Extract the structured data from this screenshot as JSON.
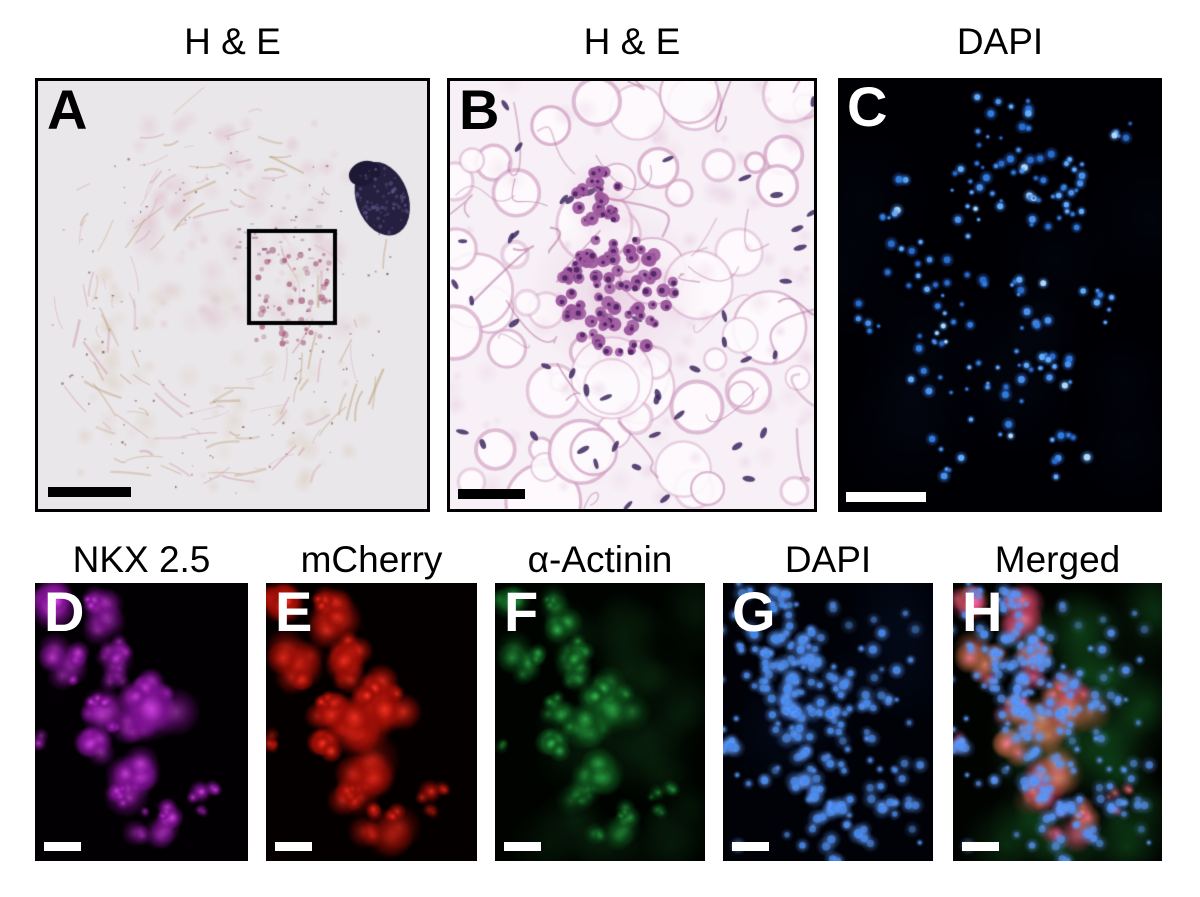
{
  "figure_name": "histology-and-immunofluorescence-panel-figure",
  "panels": [
    {
      "label": "A",
      "title": "H & E",
      "render": "he_low",
      "label_color": "#000000",
      "scalebar_color": "#000000",
      "background": "#eae7ea",
      "accents": {
        "tissue_pink": "#d6a0b2",
        "tissue_tan": "#c8aa82",
        "dense_node": "#262040",
        "inset_box": "#000000"
      }
    },
    {
      "label": "B",
      "title": "H & E",
      "render": "he_high",
      "label_color": "#000000",
      "scalebar_color": "#000000",
      "background": "#f7f0f6",
      "accents": {
        "cell_cluster": "#9a589e",
        "nuclei": "#3e2860",
        "vacuole_rim": "#ce98be"
      }
    },
    {
      "label": "C",
      "title": "DAPI",
      "render": "dapi_wide",
      "label_color": "#ffffff",
      "scalebar_color": "#ffffff",
      "background": "#000004",
      "stain_color": "#3b8df0"
    },
    {
      "label": "D",
      "title": "NKX 2.5",
      "render": "blobs",
      "label_color": "#ffffff",
      "scalebar_color": "#ffffff",
      "background": "#020002",
      "stain_color": "#c02ed2",
      "core_color": "#e24df2",
      "mid_color": "#7c1090"
    },
    {
      "label": "E",
      "title": "mCherry",
      "render": "blobs",
      "label_color": "#ffffff",
      "scalebar_color": "#ffffff",
      "background": "#050000",
      "stain_color": "#e81e14",
      "core_color": "#ff3524",
      "mid_color": "#9c0e06"
    },
    {
      "label": "F",
      "title": "α-Actinin",
      "render": "blobs",
      "label_color": "#ffffff",
      "scalebar_color": "#ffffff",
      "background": "#000300",
      "stain_color": "#22aa3c",
      "core_color": "#37c455",
      "mid_color": "#0d4f1a"
    },
    {
      "label": "G",
      "title": "DAPI",
      "render": "nuclei",
      "label_color": "#ffffff",
      "scalebar_color": "#ffffff",
      "background": "#000208",
      "stain_color": "#4085ea"
    },
    {
      "label": "H",
      "title": "Merged",
      "render": "merged",
      "label_color": "#ffffff",
      "scalebar_color": "#ffffff",
      "background": "#010301",
      "pink_color": "#ff7e96",
      "salmon_color": "#f2a27e",
      "blue_color": "#4c8cf5",
      "green_color": "#12591f"
    }
  ]
}
